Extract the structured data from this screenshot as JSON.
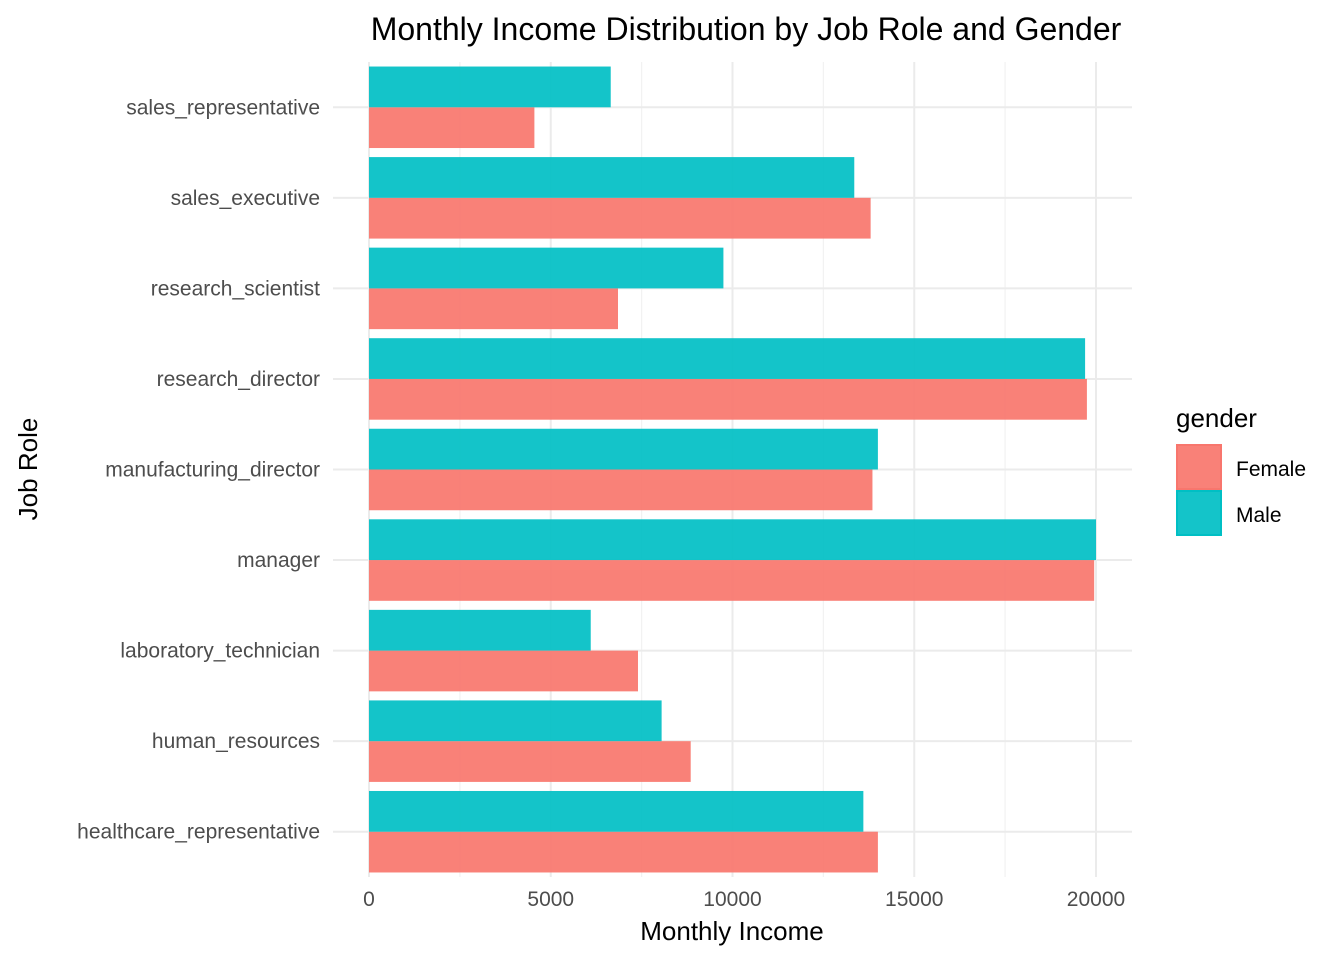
{
  "chart_data": {
    "type": "bar",
    "orientation": "horizontal",
    "title": "Monthly Income Distribution by Job Role and Gender",
    "xlabel": "Monthly Income",
    "ylabel": "Job Role",
    "xlim": [
      0,
      21000
    ],
    "x_ticks": [
      0,
      5000,
      10000,
      15000,
      20000
    ],
    "x_tick_labels": [
      "0",
      "5000",
      "10000",
      "15000",
      "20000"
    ],
    "grid": true,
    "legend": {
      "title": "gender",
      "position": "right",
      "entries": [
        "Female",
        "Male"
      ]
    },
    "categories": [
      "healthcare_representative",
      "human_resources",
      "laboratory_technician",
      "manager",
      "manufacturing_director",
      "research_director",
      "research_scientist",
      "sales_executive",
      "sales_representative"
    ],
    "series": [
      {
        "name": "Female",
        "color": "#F8766D",
        "values": [
          14000,
          8850,
          7400,
          19950,
          13850,
          19750,
          6850,
          13800,
          4550
        ]
      },
      {
        "name": "Male",
        "color": "#00BFC4",
        "values": [
          13600,
          8050,
          6100,
          20000,
          14000,
          19700,
          9750,
          13350,
          6650
        ]
      }
    ]
  }
}
